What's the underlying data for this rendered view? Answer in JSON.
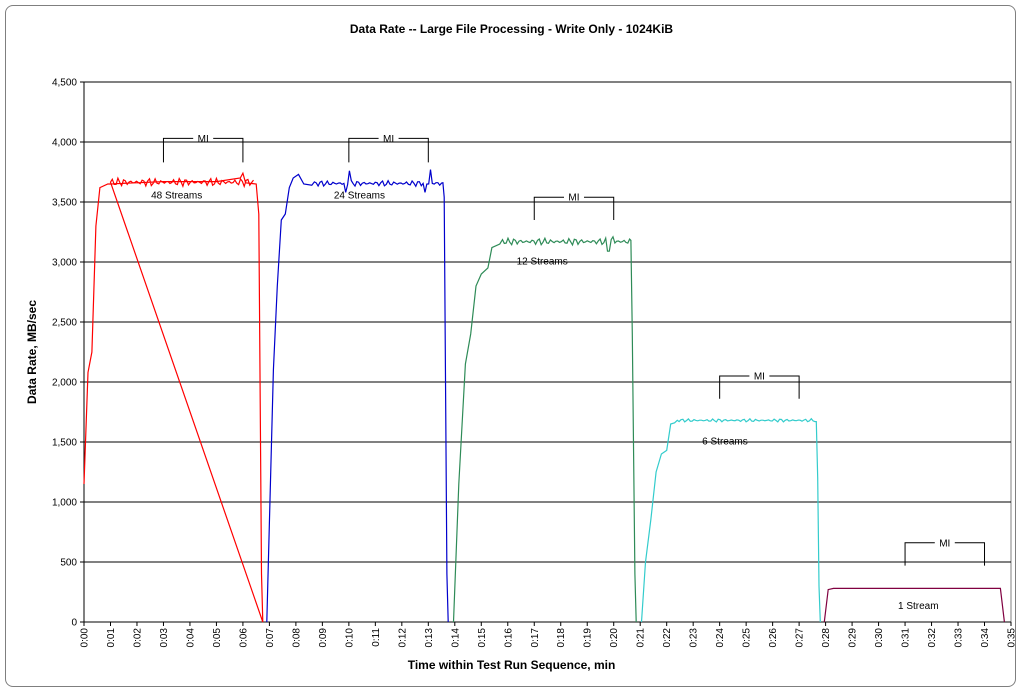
{
  "chart_data": {
    "type": "line",
    "title": "Data Rate -- Large File Processing - Write Only - 1024KiB",
    "xlabel": "Time within Test Run Sequence, min",
    "ylabel": "Data Rate, MB/sec",
    "ylim": [
      0,
      4500
    ],
    "yticks": [
      0,
      500,
      1000,
      1500,
      2000,
      2500,
      3000,
      3500,
      4000,
      4500
    ],
    "ytick_labels": [
      "0",
      "500",
      "1,000",
      "1,500",
      "2,000",
      "2,500",
      "3,000",
      "3,500",
      "4,000",
      "4,500"
    ],
    "xlim": [
      0,
      35
    ],
    "xtick_labels": [
      "0:00",
      "0:01",
      "0:02",
      "0:03",
      "0:04",
      "0:05",
      "0:06",
      "0:07",
      "0:08",
      "0:09",
      "0:10",
      "0:11",
      "0:12",
      "0:13",
      "0:14",
      "0:15",
      "0:16",
      "0:17",
      "0:18",
      "0:19",
      "0:20",
      "0:21",
      "0:22",
      "0:23",
      "0:24",
      "0:25",
      "0:26",
      "0:27",
      "0:28",
      "0:29",
      "0:30",
      "0:31",
      "0:32",
      "0:33",
      "0:34",
      "0:35"
    ],
    "grid": "horizontal",
    "series": [
      {
        "name": "48 Streams",
        "color": "#ff0000",
        "points": [
          [
            0.0,
            1150
          ],
          [
            0.15,
            2080
          ],
          [
            0.3,
            2250
          ],
          [
            0.45,
            3300
          ],
          [
            0.6,
            3620
          ],
          [
            0.9,
            3650
          ],
          [
            3.0,
            3670
          ],
          [
            5.0,
            3670
          ],
          [
            5.9,
            3700
          ],
          [
            6.0,
            3740
          ],
          [
            6.1,
            3660
          ],
          [
            6.5,
            3650
          ],
          [
            6.6,
            3400
          ],
          [
            6.7,
            400
          ],
          [
            6.75,
            0
          ]
        ],
        "plateau": [
          1.0,
          6.4,
          3665,
          35
        ],
        "spikes": []
      },
      {
        "name": "24 Streams",
        "color": "#0000cc",
        "points": [
          [
            6.9,
            0
          ],
          [
            7.15,
            2100
          ],
          [
            7.3,
            2800
          ],
          [
            7.45,
            3350
          ],
          [
            7.6,
            3400
          ],
          [
            7.75,
            3620
          ],
          [
            7.9,
            3700
          ],
          [
            8.1,
            3730
          ],
          [
            8.3,
            3650
          ],
          [
            8.6,
            3640
          ]
        ],
        "plateau": [
          8.7,
          13.5,
          3655,
          25
        ],
        "spikes": [
          [
            9.9,
            3580
          ],
          [
            10.0,
            3760
          ],
          [
            12.9,
            3580
          ],
          [
            13.1,
            3770
          ]
        ],
        "tail": [
          [
            13.55,
            3660
          ],
          [
            13.6,
            3540
          ],
          [
            13.7,
            400
          ],
          [
            13.75,
            0
          ]
        ]
      },
      {
        "name": "12 Streams",
        "color": "#2e8b57",
        "points": [
          [
            13.95,
            0
          ],
          [
            14.15,
            1150
          ],
          [
            14.4,
            2150
          ],
          [
            14.6,
            2400
          ],
          [
            14.8,
            2800
          ],
          [
            15.0,
            2900
          ],
          [
            15.25,
            2950
          ],
          [
            15.4,
            3120
          ],
          [
            15.7,
            3150
          ]
        ],
        "plateau": [
          15.8,
          20.6,
          3170,
          30
        ],
        "spikes": [
          [
            19.8,
            3090
          ],
          [
            20.0,
            3210
          ]
        ],
        "tail": [
          [
            20.65,
            3180
          ],
          [
            20.7,
            2400
          ],
          [
            20.8,
            400
          ],
          [
            20.85,
            0
          ]
        ]
      },
      {
        "name": "6 Streams",
        "color": "#33cccc",
        "points": [
          [
            21.05,
            0
          ],
          [
            21.2,
            500
          ],
          [
            21.4,
            850
          ],
          [
            21.6,
            1250
          ],
          [
            21.8,
            1400
          ],
          [
            22.0,
            1430
          ],
          [
            22.15,
            1650
          ],
          [
            22.3,
            1660
          ]
        ],
        "plateau": [
          22.4,
          27.6,
          1680,
          14
        ],
        "spikes": [],
        "tail": [
          [
            27.65,
            1670
          ],
          [
            27.7,
            1200
          ],
          [
            27.75,
            300
          ],
          [
            27.8,
            0
          ]
        ]
      },
      {
        "name": "1 Stream",
        "color": "#800040",
        "points": [
          [
            27.95,
            0
          ],
          [
            28.1,
            270
          ],
          [
            28.3,
            280
          ],
          [
            34.6,
            280
          ],
          [
            34.75,
            0
          ]
        ],
        "plateau": null,
        "spikes": []
      }
    ],
    "annotations": [
      {
        "text": "48 Streams",
        "x": 3.5,
        "y": 3530
      },
      {
        "text": "24 Streams",
        "x": 10.4,
        "y": 3530
      },
      {
        "text": "12 Streams",
        "x": 17.3,
        "y": 2980
      },
      {
        "text": "6 Streams",
        "x": 24.2,
        "y": 1480
      },
      {
        "text": "1 Stream",
        "x": 31.5,
        "y": 110
      }
    ],
    "mi_brackets": [
      {
        "label": "MI",
        "x0": 3.0,
        "x1": 6.0,
        "y_top": 4030,
        "y_bot": 3830
      },
      {
        "label": "MI",
        "x0": 10.0,
        "x1": 13.0,
        "y_top": 4030,
        "y_bot": 3830
      },
      {
        "label": "MI",
        "x0": 17.0,
        "x1": 20.0,
        "y_top": 3540,
        "y_bot": 3350
      },
      {
        "label": "MI",
        "x0": 24.0,
        "x1": 27.0,
        "y_top": 2050,
        "y_bot": 1860
      },
      {
        "label": "MI",
        "x0": 31.0,
        "x1": 34.0,
        "y_top": 660,
        "y_bot": 470
      }
    ]
  }
}
